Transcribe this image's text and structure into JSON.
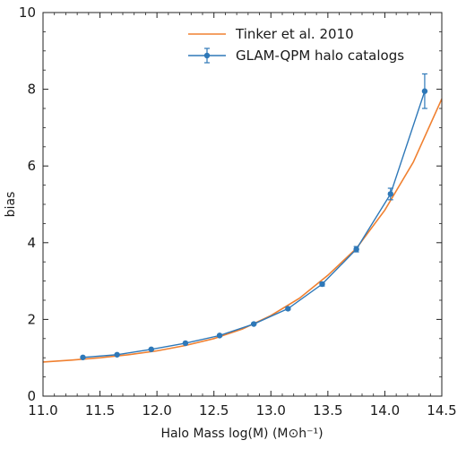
{
  "chart_data": {
    "type": "line",
    "xlabel": "Halo Mass log(M) (M⊙h⁻¹)",
    "ylabel": "bias",
    "xlim": [
      11.0,
      14.5
    ],
    "ylim": [
      0,
      10
    ],
    "xticks": [
      "11.0",
      "11.5",
      "12.0",
      "12.5",
      "13.0",
      "13.5",
      "14.0",
      "14.5"
    ],
    "yticks": [
      "0",
      "2",
      "4",
      "6",
      "8",
      "10"
    ],
    "grid": false,
    "legend_position": "top-right",
    "series": [
      {
        "name": "Tinker et al. 2010",
        "color": "#f08030",
        "style": "line",
        "x": [
          11.0,
          11.25,
          11.5,
          11.75,
          12.0,
          12.25,
          12.5,
          12.75,
          13.0,
          13.25,
          13.5,
          13.75,
          14.0,
          14.25,
          14.5
        ],
        "y": [
          0.89,
          0.94,
          1.0,
          1.08,
          1.18,
          1.32,
          1.5,
          1.75,
          2.1,
          2.55,
          3.15,
          3.85,
          4.85,
          6.1,
          7.75
        ]
      },
      {
        "name": "GLAM-QPM halo catalogs",
        "color": "#2e78b8",
        "style": "line-markers-errorbars",
        "x": [
          11.35,
          11.65,
          11.95,
          12.25,
          12.55,
          12.85,
          13.15,
          13.45,
          13.75,
          14.05,
          14.35
        ],
        "y": [
          1.01,
          1.08,
          1.22,
          1.38,
          1.58,
          1.88,
          2.28,
          2.92,
          3.83,
          5.27,
          7.95
        ],
        "yerr": [
          0.01,
          0.01,
          0.01,
          0.01,
          0.02,
          0.02,
          0.03,
          0.05,
          0.07,
          0.15,
          0.45
        ]
      }
    ]
  }
}
